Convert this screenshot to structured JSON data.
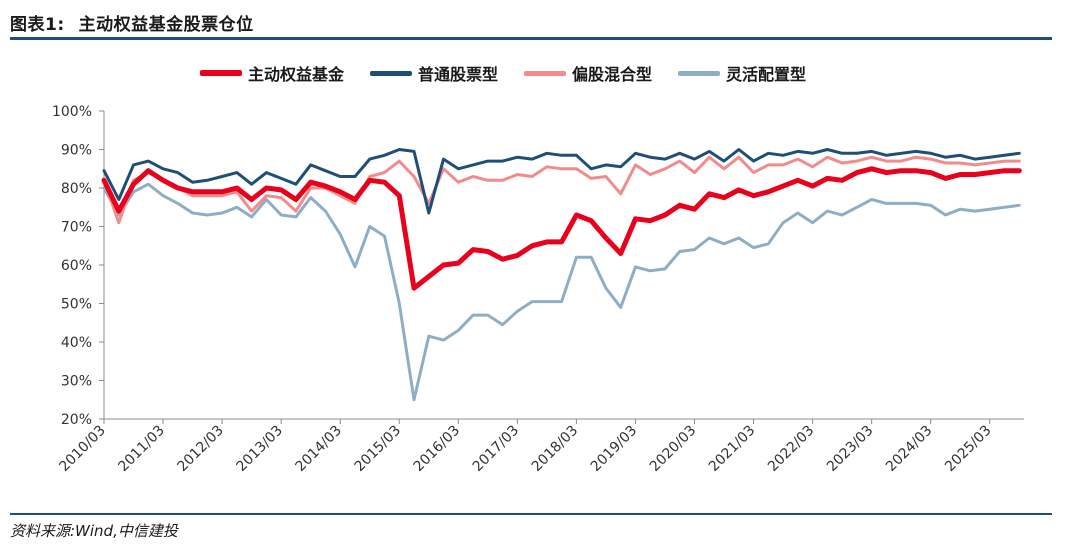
{
  "figure": {
    "label": "图表1:",
    "title": "主动权益基金股票仓位",
    "source": "资料来源:Wind,中信建投"
  },
  "colors": {
    "rule": "#1f4e79",
    "axis": "#8c8c8c",
    "active_equity": "#e8001c",
    "ordinary_stock": "#1f4e79",
    "partial_mixed": "#f28b8c",
    "flexible": "#8eaec6"
  },
  "chart_data": {
    "type": "line",
    "xlabel": "",
    "ylabel": "",
    "ylim": [
      20,
      100
    ],
    "y_ticks": [
      "20%",
      "30%",
      "40%",
      "50%",
      "60%",
      "70%",
      "80%",
      "90%",
      "100%"
    ],
    "x_range": [
      2010.17,
      2025.75
    ],
    "x_ticks": [
      "2010/03",
      "2011/03",
      "2012/03",
      "2013/03",
      "2014/03",
      "2015/03",
      "2016/03",
      "2017/03",
      "2018/03",
      "2019/03",
      "2020/03",
      "2021/03",
      "2022/03",
      "2023/03",
      "2024/03",
      "2025/03"
    ],
    "grid": false,
    "legend": "top",
    "series": [
      {
        "name": "主动权益基金",
        "color": "#e8001c",
        "width": 5,
        "points": [
          [
            2010.17,
            82
          ],
          [
            2010.42,
            74
          ],
          [
            2010.67,
            81
          ],
          [
            2010.92,
            84.5
          ],
          [
            2011.17,
            82
          ],
          [
            2011.42,
            80
          ],
          [
            2011.67,
            79
          ],
          [
            2011.92,
            79
          ],
          [
            2012.17,
            79
          ],
          [
            2012.42,
            80
          ],
          [
            2012.67,
            77
          ],
          [
            2012.92,
            80
          ],
          [
            2013.17,
            79.5
          ],
          [
            2013.42,
            77
          ],
          [
            2013.67,
            81.5
          ],
          [
            2013.92,
            80.5
          ],
          [
            2014.17,
            79
          ],
          [
            2014.42,
            77
          ],
          [
            2014.67,
            82
          ],
          [
            2014.92,
            81.5
          ],
          [
            2015.17,
            78
          ],
          [
            2015.42,
            54
          ],
          [
            2015.67,
            57
          ],
          [
            2015.92,
            60
          ],
          [
            2016.17,
            60.5
          ],
          [
            2016.42,
            64
          ],
          [
            2016.67,
            63.5
          ],
          [
            2016.92,
            61.5
          ],
          [
            2017.17,
            62.5
          ],
          [
            2017.42,
            65
          ],
          [
            2017.67,
            66
          ],
          [
            2017.92,
            66
          ],
          [
            2018.17,
            73
          ],
          [
            2018.42,
            71.5
          ],
          [
            2018.67,
            67
          ],
          [
            2018.92,
            63
          ],
          [
            2019.17,
            72
          ],
          [
            2019.42,
            71.5
          ],
          [
            2019.67,
            73
          ],
          [
            2019.92,
            75.5
          ],
          [
            2020.17,
            74.5
          ],
          [
            2020.42,
            78.5
          ],
          [
            2020.67,
            77.5
          ],
          [
            2020.92,
            79.5
          ],
          [
            2021.17,
            78
          ],
          [
            2021.42,
            79
          ],
          [
            2021.67,
            80.5
          ],
          [
            2021.92,
            82
          ],
          [
            2022.17,
            80.5
          ],
          [
            2022.42,
            82.5
          ],
          [
            2022.67,
            82
          ],
          [
            2022.92,
            84
          ],
          [
            2023.17,
            85
          ],
          [
            2023.42,
            84
          ],
          [
            2023.67,
            84.5
          ],
          [
            2023.92,
            84.5
          ],
          [
            2024.17,
            84
          ],
          [
            2024.42,
            82.5
          ],
          [
            2024.67,
            83.5
          ],
          [
            2024.92,
            83.5
          ],
          [
            2025.17,
            84
          ],
          [
            2025.42,
            84.5
          ],
          [
            2025.67,
            84.5
          ]
        ]
      },
      {
        "name": "普通股票型",
        "color": "#1f4e79",
        "width": 3,
        "points": [
          [
            2010.17,
            84.5
          ],
          [
            2010.42,
            77
          ],
          [
            2010.67,
            86
          ],
          [
            2010.92,
            87
          ],
          [
            2011.17,
            85
          ],
          [
            2011.42,
            84
          ],
          [
            2011.67,
            81.5
          ],
          [
            2011.92,
            82
          ],
          [
            2012.17,
            83
          ],
          [
            2012.42,
            84
          ],
          [
            2012.67,
            81
          ],
          [
            2012.92,
            84
          ],
          [
            2013.17,
            82.5
          ],
          [
            2013.42,
            81
          ],
          [
            2013.67,
            86
          ],
          [
            2013.92,
            84.5
          ],
          [
            2014.17,
            83
          ],
          [
            2014.42,
            83
          ],
          [
            2014.67,
            87.5
          ],
          [
            2014.92,
            88.5
          ],
          [
            2015.17,
            90
          ],
          [
            2015.42,
            89.5
          ],
          [
            2015.67,
            73.5
          ],
          [
            2015.92,
            87.5
          ],
          [
            2016.17,
            85
          ],
          [
            2016.42,
            86
          ],
          [
            2016.67,
            87
          ],
          [
            2016.92,
            87
          ],
          [
            2017.17,
            88
          ],
          [
            2017.42,
            87.5
          ],
          [
            2017.67,
            89
          ],
          [
            2017.92,
            88.5
          ],
          [
            2018.17,
            88.5
          ],
          [
            2018.42,
            85
          ],
          [
            2018.67,
            86
          ],
          [
            2018.92,
            85.5
          ],
          [
            2019.17,
            89
          ],
          [
            2019.42,
            88
          ],
          [
            2019.67,
            87.5
          ],
          [
            2019.92,
            89
          ],
          [
            2020.17,
            87.5
          ],
          [
            2020.42,
            89.5
          ],
          [
            2020.67,
            87
          ],
          [
            2020.92,
            90
          ],
          [
            2021.17,
            87
          ],
          [
            2021.42,
            89
          ],
          [
            2021.67,
            88.5
          ],
          [
            2021.92,
            89.5
          ],
          [
            2022.17,
            89
          ],
          [
            2022.42,
            90
          ],
          [
            2022.67,
            89
          ],
          [
            2022.92,
            89
          ],
          [
            2023.17,
            89.5
          ],
          [
            2023.42,
            88.5
          ],
          [
            2023.67,
            89
          ],
          [
            2023.92,
            89.5
          ],
          [
            2024.17,
            89
          ],
          [
            2024.42,
            88
          ],
          [
            2024.67,
            88.5
          ],
          [
            2024.92,
            87.5
          ],
          [
            2025.17,
            88
          ],
          [
            2025.42,
            88.5
          ],
          [
            2025.67,
            89
          ]
        ]
      },
      {
        "name": "偏股混合型",
        "color": "#f28b8c",
        "width": 3,
        "points": [
          [
            2010.17,
            82
          ],
          [
            2010.42,
            71
          ],
          [
            2010.67,
            82
          ],
          [
            2010.92,
            84
          ],
          [
            2011.17,
            82
          ],
          [
            2011.42,
            80
          ],
          [
            2011.67,
            78
          ],
          [
            2011.92,
            78
          ],
          [
            2012.17,
            78
          ],
          [
            2012.42,
            79
          ],
          [
            2012.67,
            74
          ],
          [
            2012.92,
            78
          ],
          [
            2013.17,
            77.5
          ],
          [
            2013.42,
            74
          ],
          [
            2013.67,
            80
          ],
          [
            2013.92,
            80
          ],
          [
            2014.17,
            78
          ],
          [
            2014.42,
            76
          ],
          [
            2014.67,
            83
          ],
          [
            2014.92,
            84
          ],
          [
            2015.17,
            87
          ],
          [
            2015.42,
            83
          ],
          [
            2015.67,
            76
          ],
          [
            2015.92,
            85
          ],
          [
            2016.17,
            81.5
          ],
          [
            2016.42,
            83
          ],
          [
            2016.67,
            82
          ],
          [
            2016.92,
            82
          ],
          [
            2017.17,
            83.5
          ],
          [
            2017.42,
            83
          ],
          [
            2017.67,
            85.5
          ],
          [
            2017.92,
            85
          ],
          [
            2018.17,
            85
          ],
          [
            2018.42,
            82.5
          ],
          [
            2018.67,
            83
          ],
          [
            2018.92,
            78.5
          ],
          [
            2019.17,
            86
          ],
          [
            2019.42,
            83.5
          ],
          [
            2019.67,
            85
          ],
          [
            2019.92,
            87
          ],
          [
            2020.17,
            84
          ],
          [
            2020.42,
            88
          ],
          [
            2020.67,
            85
          ],
          [
            2020.92,
            88
          ],
          [
            2021.17,
            84
          ],
          [
            2021.42,
            86
          ],
          [
            2021.67,
            86
          ],
          [
            2021.92,
            87.5
          ],
          [
            2022.17,
            85.5
          ],
          [
            2022.42,
            88
          ],
          [
            2022.67,
            86.5
          ],
          [
            2022.92,
            87
          ],
          [
            2023.17,
            88
          ],
          [
            2023.42,
            87
          ],
          [
            2023.67,
            87
          ],
          [
            2023.92,
            88
          ],
          [
            2024.17,
            87.5
          ],
          [
            2024.42,
            86.5
          ],
          [
            2024.67,
            86.5
          ],
          [
            2024.92,
            86
          ],
          [
            2025.17,
            86.5
          ],
          [
            2025.42,
            87
          ],
          [
            2025.67,
            87
          ]
        ]
      },
      {
        "name": "灵活配置型",
        "color": "#8eaec6",
        "width": 3,
        "points": [
          [
            2010.17,
            80
          ],
          [
            2010.42,
            73
          ],
          [
            2010.67,
            79
          ],
          [
            2010.92,
            81
          ],
          [
            2011.17,
            78
          ],
          [
            2011.42,
            76
          ],
          [
            2011.67,
            73.5
          ],
          [
            2011.92,
            73
          ],
          [
            2012.17,
            73.5
          ],
          [
            2012.42,
            75
          ],
          [
            2012.67,
            72.5
          ],
          [
            2012.92,
            77
          ],
          [
            2013.17,
            73
          ],
          [
            2013.42,
            72.5
          ],
          [
            2013.67,
            77.5
          ],
          [
            2013.92,
            74
          ],
          [
            2014.17,
            68
          ],
          [
            2014.42,
            59.5
          ],
          [
            2014.67,
            70
          ],
          [
            2014.92,
            67.5
          ],
          [
            2015.17,
            50
          ],
          [
            2015.42,
            25
          ],
          [
            2015.67,
            41.5
          ],
          [
            2015.92,
            40.5
          ],
          [
            2016.17,
            43
          ],
          [
            2016.42,
            47
          ],
          [
            2016.67,
            47
          ],
          [
            2016.92,
            44.5
          ],
          [
            2017.17,
            48
          ],
          [
            2017.42,
            50.5
          ],
          [
            2017.67,
            50.5
          ],
          [
            2017.92,
            50.5
          ],
          [
            2018.17,
            62
          ],
          [
            2018.42,
            62
          ],
          [
            2018.67,
            54
          ],
          [
            2018.92,
            49
          ],
          [
            2019.17,
            59.5
          ],
          [
            2019.42,
            58.5
          ],
          [
            2019.67,
            59
          ],
          [
            2019.92,
            63.5
          ],
          [
            2020.17,
            64
          ],
          [
            2020.42,
            67
          ],
          [
            2020.67,
            65.5
          ],
          [
            2020.92,
            67
          ],
          [
            2021.17,
            64.5
          ],
          [
            2021.42,
            65.5
          ],
          [
            2021.67,
            71
          ],
          [
            2021.92,
            73.5
          ],
          [
            2022.17,
            71
          ],
          [
            2022.42,
            74
          ],
          [
            2022.67,
            73
          ],
          [
            2022.92,
            75
          ],
          [
            2023.17,
            77
          ],
          [
            2023.42,
            76
          ],
          [
            2023.67,
            76
          ],
          [
            2023.92,
            76
          ],
          [
            2024.17,
            75.5
          ],
          [
            2024.42,
            73
          ],
          [
            2024.67,
            74.5
          ],
          [
            2024.92,
            74
          ],
          [
            2025.17,
            74.5
          ],
          [
            2025.42,
            75
          ],
          [
            2025.67,
            75.5
          ]
        ]
      }
    ]
  }
}
